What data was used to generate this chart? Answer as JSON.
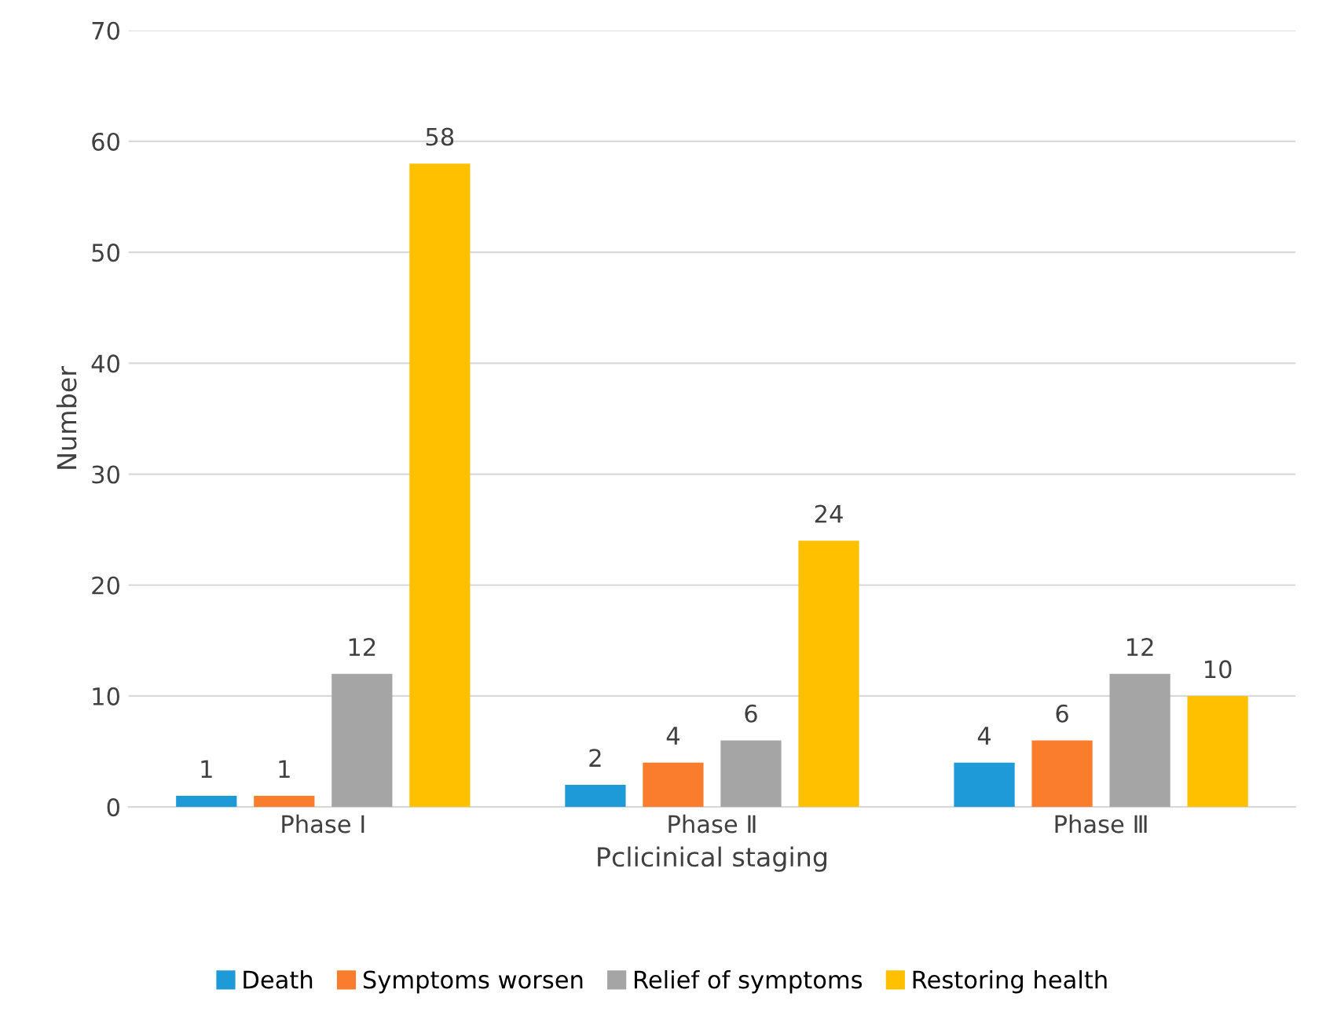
{
  "chart_data": {
    "type": "bar",
    "xlabel": "Pclicinical staging",
    "ylabel": "Number",
    "categories": [
      "Phase Ⅰ",
      "Phase Ⅱ",
      "Phase Ⅲ"
    ],
    "series": [
      {
        "name": "Death",
        "color": "#1f9ad8",
        "values": [
          1,
          2,
          4
        ]
      },
      {
        "name": "Symptoms worsen",
        "color": "#fa7d2d",
        "values": [
          1,
          4,
          6
        ]
      },
      {
        "name": "Relief of symptoms",
        "color": "#a5a5a5",
        "values": [
          12,
          6,
          12
        ]
      },
      {
        "name": "Restoring health",
        "color": "#ffc000",
        "values": [
          58,
          24,
          10
        ]
      }
    ],
    "ylim": [
      0,
      70
    ],
    "yticks": [
      0,
      10,
      20,
      30,
      40,
      50,
      60,
      70
    ],
    "grid": "y",
    "legend": "bottom",
    "data_labels": true
  }
}
